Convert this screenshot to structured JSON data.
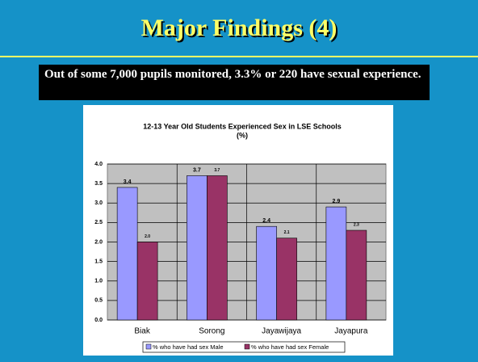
{
  "slide": {
    "title": "Major Findings (4)",
    "text": "Out of some 7,000 pupils monitored, 3.3% or 220 have sexual experience."
  },
  "chart_data": {
    "type": "bar",
    "title": [
      "12-13 Year Old Students Experienced Sex in LSE Schools",
      "(%)"
    ],
    "categories": [
      "Biak",
      "Sorong",
      "Jayawijaya",
      "Jayapura"
    ],
    "series": [
      {
        "name": "% who have had sex Male",
        "color": "#9999ff",
        "values": [
          3.4,
          3.7,
          2.4,
          2.9
        ],
        "value_labels": [
          "3.4",
          "3.7",
          "2.4",
          "2.9"
        ]
      },
      {
        "name": "% who have had sex Female",
        "color": "#993366",
        "values": [
          2.0,
          3.7,
          2.1,
          2.3
        ],
        "value_labels": [
          "2.0",
          "3.7",
          "2.1",
          "2.3"
        ]
      }
    ],
    "ylim": [
      0,
      4
    ],
    "yticks": [
      {
        "value": 0,
        "label": "0.0"
      },
      0.5,
      {
        "value": 1,
        "label": "1.0"
      },
      1.5,
      {
        "value": 2,
        "label": "2.0"
      },
      2.5,
      {
        "value": 3,
        "label": "3.0"
      },
      3.5,
      {
        "value": 4,
        "label": "4.0"
      }
    ],
    "grid": true,
    "legend": "bottom"
  }
}
